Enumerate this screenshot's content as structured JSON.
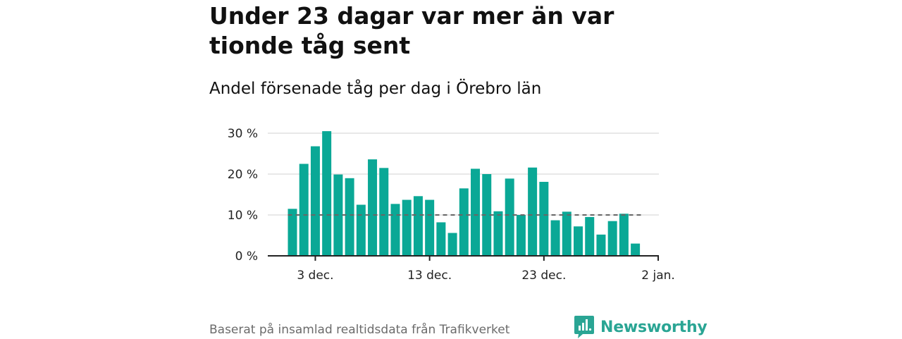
{
  "title": "Under 23 dagar var mer än var tionde tåg sent",
  "subtitle": "Andel försenade tåg per dag i Örebro län",
  "footer": {
    "source": "Baserat på insamlad realtidsdata från Trafikverket",
    "brand": "Newsworthy"
  },
  "colors": {
    "bar": "#0aa896",
    "grid": "#d9d9d9",
    "reference_line": "#666666",
    "brand": "#2aa594"
  },
  "chart_data": {
    "type": "bar",
    "title": "Under 23 dagar var mer än var tionde tåg sent",
    "subtitle": "Andel försenade tåg per dag i Örebro län",
    "xlabel": "",
    "ylabel": "",
    "ylim": [
      0,
      30
    ],
    "y_ticks": [
      0,
      10,
      20,
      30
    ],
    "y_tick_labels": [
      "0 %",
      "10 %",
      "20 %",
      "30 %"
    ],
    "x_tick_labels": [
      {
        "label": "3 dec.",
        "date": "3 dec."
      },
      {
        "label": "13 dec.",
        "date": "13 dec."
      },
      {
        "label": "23 dec.",
        "date": "23 dec."
      },
      {
        "label": "2 jan.",
        "date": "2 jan."
      }
    ],
    "categories": [
      "1 dec.",
      "2 dec.",
      "3 dec.",
      "4 dec.",
      "5 dec.",
      "6 dec.",
      "7 dec.",
      "8 dec.",
      "9 dec.",
      "10 dec.",
      "11 dec.",
      "12 dec.",
      "13 dec.",
      "14 dec.",
      "15 dec.",
      "16 dec.",
      "17 dec.",
      "18 dec.",
      "19 dec.",
      "20 dec.",
      "21 dec.",
      "22 dec.",
      "23 dec.",
      "24 dec.",
      "25 dec.",
      "26 dec.",
      "27 dec.",
      "28 dec.",
      "29 dec.",
      "30 dec.",
      "31 dec."
    ],
    "series": [
      {
        "values": [
          11.5,
          22.5,
          26.8,
          30.5,
          19.9,
          19.0,
          12.5,
          23.6,
          21.5,
          12.7,
          13.7,
          14.6,
          13.7,
          8.2,
          5.6,
          16.5,
          21.3,
          20.0,
          10.9,
          18.9,
          10.0,
          21.6,
          18.1,
          8.7,
          10.8,
          7.2,
          9.5,
          5.2,
          8.5,
          10.3,
          3.0
        ]
      }
    ],
    "reference_line": {
      "value": 10,
      "style": "dashed"
    },
    "grid": true,
    "legend": "none"
  }
}
